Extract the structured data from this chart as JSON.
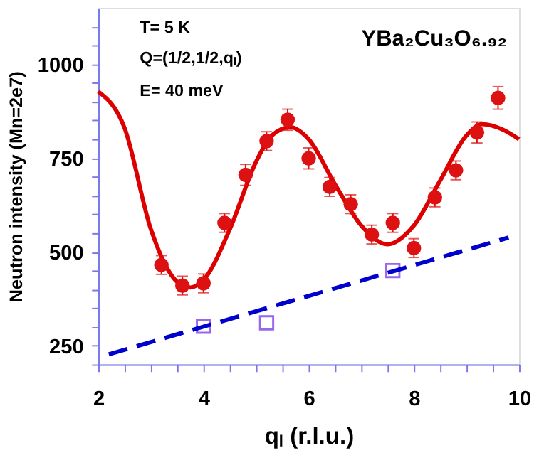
{
  "chart_data": {
    "type": "scatter",
    "xlabel": "qₗ (r.l.u.)",
    "ylabel": "Neutron intensity (Mn=2e7)",
    "annotations": [
      "T= 5  K",
      "Q=(1/2,1/2,qₗ)",
      "E= 40 meV",
      "YBa₂Cu₃O₆.₉₂"
    ],
    "xlim": [
      2,
      10
    ],
    "ylim": [
      200,
      1150
    ],
    "xticks": [
      2,
      {
        "value": 2.5,
        "label": null
      },
      {
        "value": 3,
        "label": null
      },
      {
        "value": 3.5,
        "label": null
      },
      4,
      {
        "value": 4.5,
        "label": null
      },
      {
        "value": 5,
        "label": null
      },
      {
        "value": 5.5,
        "label": null
      },
      6,
      {
        "value": 6.5,
        "label": null
      },
      {
        "value": 7,
        "label": null
      },
      {
        "value": 7.5,
        "label": null
      },
      8,
      {
        "value": 8.5,
        "label": null
      },
      {
        "value": 9,
        "label": null
      },
      {
        "value": 9.5,
        "label": null
      },
      10
    ],
    "yticks": [
      {
        "value": 200,
        "label": null
      },
      250,
      {
        "value": 300,
        "label": null
      },
      {
        "value": 350,
        "label": null
      },
      {
        "value": 400,
        "label": null
      },
      {
        "value": 450,
        "label": null
      },
      500,
      {
        "value": 550,
        "label": null
      },
      {
        "value": 600,
        "label": null
      },
      {
        "value": 650,
        "label": null
      },
      {
        "value": 700,
        "label": null
      },
      750,
      {
        "value": 800,
        "label": null
      },
      {
        "value": 850,
        "label": null
      },
      {
        "value": 900,
        "label": null
      },
      {
        "value": 950,
        "label": null
      },
      1000,
      {
        "value": 1050,
        "label": null
      },
      {
        "value": 1100,
        "label": null
      }
    ],
    "grid": false,
    "series": [
      {
        "type": "line",
        "color": "#dd0000",
        "line_style": "solid",
        "marker": "none",
        "x": [
          2,
          2.5,
          3,
          3.5,
          3.75,
          4,
          4.5,
          5,
          5.3,
          5.65,
          6,
          6.5,
          7,
          7.5,
          8,
          8.5,
          9,
          9.3,
          9.7,
          10
        ],
        "values": [
          927,
          830,
          560,
          420,
          405,
          425,
          560,
          740,
          810,
          832,
          800,
          680,
          570,
          520,
          570,
          690,
          810,
          840,
          825,
          800
        ]
      },
      {
        "color": "#dd1111",
        "marker": "circle",
        "x": [
          3.2,
          3.6,
          4.0,
          4.4,
          4.8,
          5.2,
          5.6,
          6.0,
          6.4,
          6.8,
          7.2,
          7.6,
          8.0,
          8.4,
          8.8,
          9.2,
          9.6
        ],
        "values": [
          465,
          410,
          416,
          577,
          705,
          795,
          852,
          749,
          673,
          627,
          546,
          577,
          510,
          645,
          717,
          818,
          910
        ],
        "errors": [
          25,
          25,
          25,
          25,
          28,
          25,
          28,
          28,
          25,
          25,
          25,
          25,
          25,
          25,
          25,
          28,
          30
        ]
      },
      {
        "color": "#9966ee",
        "marker": "square",
        "x": [
          4.0,
          5.2,
          7.6
        ],
        "values": [
          302,
          311,
          450
        ]
      },
      {
        "type": "line",
        "color": "#0000cc",
        "line_style": "dashed",
        "marker": "none",
        "x": [
          2.2,
          9.8
        ],
        "values": [
          227,
          538
        ]
      }
    ]
  }
}
